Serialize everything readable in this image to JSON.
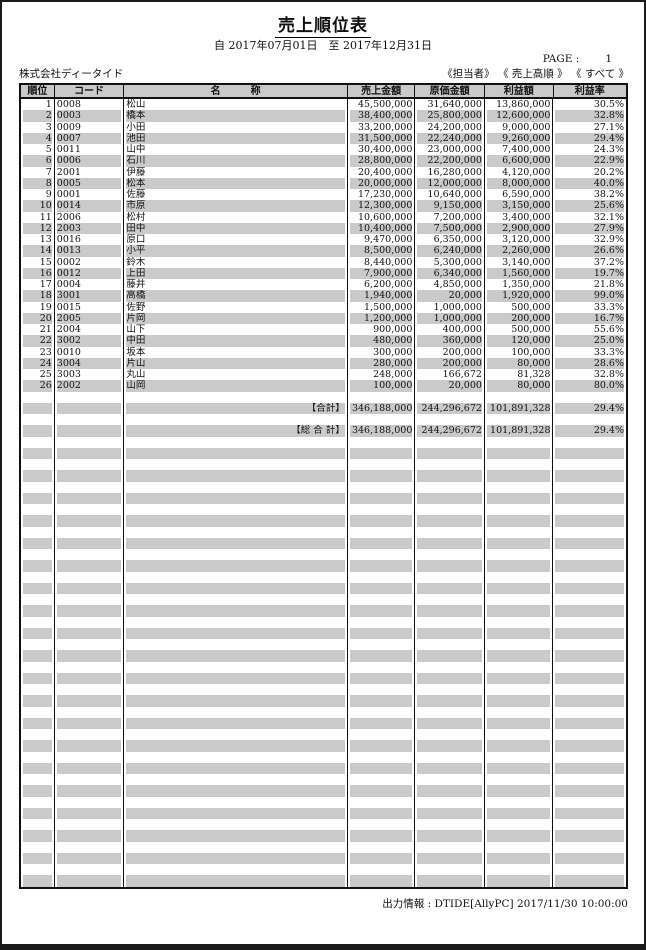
{
  "report": {
    "title": "売上順位表",
    "period": "自  2017年07月01日　至  2017年12月31日",
    "page_label": "PAGE :",
    "page_number": "1",
    "company": "株式会社ディータイド",
    "filters": "《担当者》 《 売上高順 》 《 すべて 》",
    "footer": "出力情報 : DTIDE[AllyPC]  2017/11/30  10:00:00"
  },
  "colors": {
    "stripe_gray": "#cacaca",
    "border_black": "#111111",
    "page_border": "#1a1a1a"
  },
  "table": {
    "columns": [
      "順位",
      "コード",
      "名　　　称",
      "売上金額",
      "原価金額",
      "利益額",
      "利益率"
    ],
    "rows": [
      {
        "rank": "1",
        "code": "0008",
        "name": "松山",
        "sales": "45,500,000",
        "cost": "31,640,000",
        "profit": "13,860,000",
        "rate": "30.5%"
      },
      {
        "rank": "2",
        "code": "0003",
        "name": "橋本",
        "sales": "38,400,000",
        "cost": "25,800,000",
        "profit": "12,600,000",
        "rate": "32.8%"
      },
      {
        "rank": "3",
        "code": "0009",
        "name": "小田",
        "sales": "33,200,000",
        "cost": "24,200,000",
        "profit": "9,000,000",
        "rate": "27.1%"
      },
      {
        "rank": "4",
        "code": "0007",
        "name": "池田",
        "sales": "31,500,000",
        "cost": "22,240,000",
        "profit": "9,260,000",
        "rate": "29.4%"
      },
      {
        "rank": "5",
        "code": "0011",
        "name": "山中",
        "sales": "30,400,000",
        "cost": "23,000,000",
        "profit": "7,400,000",
        "rate": "24.3%"
      },
      {
        "rank": "6",
        "code": "0006",
        "name": "石川",
        "sales": "28,800,000",
        "cost": "22,200,000",
        "profit": "6,600,000",
        "rate": "22.9%"
      },
      {
        "rank": "7",
        "code": "2001",
        "name": "伊藤",
        "sales": "20,400,000",
        "cost": "16,280,000",
        "profit": "4,120,000",
        "rate": "20.2%"
      },
      {
        "rank": "8",
        "code": "0005",
        "name": "松本",
        "sales": "20,000,000",
        "cost": "12,000,000",
        "profit": "8,000,000",
        "rate": "40.0%"
      },
      {
        "rank": "9",
        "code": "0001",
        "name": "佐藤",
        "sales": "17,230,000",
        "cost": "10,640,000",
        "profit": "6,590,000",
        "rate": "38.2%"
      },
      {
        "rank": "10",
        "code": "0014",
        "name": "市原",
        "sales": "12,300,000",
        "cost": "9,150,000",
        "profit": "3,150,000",
        "rate": "25.6%"
      },
      {
        "rank": "11",
        "code": "2006",
        "name": "松村",
        "sales": "10,600,000",
        "cost": "7,200,000",
        "profit": "3,400,000",
        "rate": "32.1%"
      },
      {
        "rank": "12",
        "code": "2003",
        "name": "田中",
        "sales": "10,400,000",
        "cost": "7,500,000",
        "profit": "2,900,000",
        "rate": "27.9%"
      },
      {
        "rank": "13",
        "code": "0016",
        "name": "原口",
        "sales": "9,470,000",
        "cost": "6,350,000",
        "profit": "3,120,000",
        "rate": "32.9%"
      },
      {
        "rank": "14",
        "code": "0013",
        "name": "小平",
        "sales": "8,500,000",
        "cost": "6,240,000",
        "profit": "2,260,000",
        "rate": "26.6%"
      },
      {
        "rank": "15",
        "code": "0002",
        "name": "鈴木",
        "sales": "8,440,000",
        "cost": "5,300,000",
        "profit": "3,140,000",
        "rate": "37.2%"
      },
      {
        "rank": "16",
        "code": "0012",
        "name": "上田",
        "sales": "7,900,000",
        "cost": "6,340,000",
        "profit": "1,560,000",
        "rate": "19.7%"
      },
      {
        "rank": "17",
        "code": "0004",
        "name": "藤井",
        "sales": "6,200,000",
        "cost": "4,850,000",
        "profit": "1,350,000",
        "rate": "21.8%"
      },
      {
        "rank": "18",
        "code": "3001",
        "name": "高橋",
        "sales": "1,940,000",
        "cost": "20,000",
        "profit": "1,920,000",
        "rate": "99.0%"
      },
      {
        "rank": "19",
        "code": "0015",
        "name": "佐野",
        "sales": "1,500,000",
        "cost": "1,000,000",
        "profit": "500,000",
        "rate": "33.3%"
      },
      {
        "rank": "20",
        "code": "2005",
        "name": "片岡",
        "sales": "1,200,000",
        "cost": "1,000,000",
        "profit": "200,000",
        "rate": "16.7%"
      },
      {
        "rank": "21",
        "code": "2004",
        "name": "山下",
        "sales": "900,000",
        "cost": "400,000",
        "profit": "500,000",
        "rate": "55.6%"
      },
      {
        "rank": "22",
        "code": "3002",
        "name": "中田",
        "sales": "480,000",
        "cost": "360,000",
        "profit": "120,000",
        "rate": "25.0%"
      },
      {
        "rank": "23",
        "code": "0010",
        "name": "坂本",
        "sales": "300,000",
        "cost": "200,000",
        "profit": "100,000",
        "rate": "33.3%"
      },
      {
        "rank": "24",
        "code": "3004",
        "name": "片山",
        "sales": "280,000",
        "cost": "200,000",
        "profit": "80,000",
        "rate": "28.6%"
      },
      {
        "rank": "25",
        "code": "3003",
        "name": "丸山",
        "sales": "248,000",
        "cost": "166,672",
        "profit": "81,328",
        "rate": "32.8%"
      },
      {
        "rank": "26",
        "code": "2002",
        "name": "山岡",
        "sales": "100,000",
        "cost": "20,000",
        "profit": "80,000",
        "rate": "80.0%"
      }
    ],
    "totals_row": {
      "label": "【合計】",
      "sales": "346,188,000",
      "cost": "244,296,672",
      "profit": "101,891,328",
      "rate": "29.4%"
    },
    "grand_totals_row": {
      "label": "【総 合 計】",
      "sales": "346,188,000",
      "cost": "244,296,672",
      "profit": "101,891,328",
      "rate": "29.4%"
    },
    "empty_rows_before_totals": 1,
    "empty_rows_between_totals": 1,
    "trailing_empty_rows": 40
  }
}
